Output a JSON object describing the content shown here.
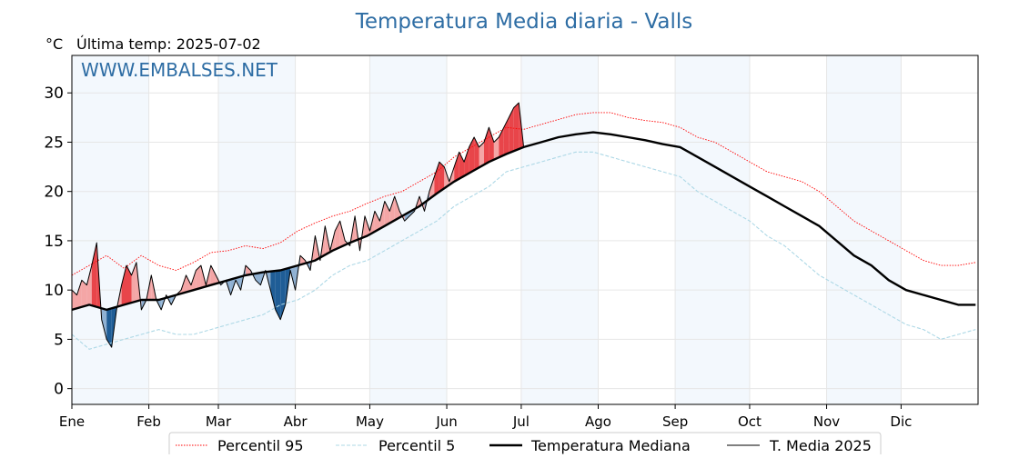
{
  "chart_data": {
    "type": "line",
    "title": "Temperatura Media diaria - Valls",
    "unit_label": "°C",
    "last_temp_label": "Última temp: 2025-07-02",
    "watermark": "WWW.EMBALSES.NET",
    "xlabel": "",
    "ylabel": "",
    "x_unit": "day of year",
    "xlim": [
      1,
      366
    ],
    "ylim": [
      -1.6,
      33.8
    ],
    "yticks": [
      0,
      5,
      10,
      15,
      20,
      25,
      30
    ],
    "months": [
      {
        "label": "Ene",
        "start": 1
      },
      {
        "label": "Feb",
        "start": 32
      },
      {
        "label": "Mar",
        "start": 60
      },
      {
        "label": "Abr",
        "start": 91
      },
      {
        "label": "May",
        "start": 121
      },
      {
        "label": "Jun",
        "start": 152
      },
      {
        "label": "Jul",
        "start": 182
      },
      {
        "label": "Ago",
        "start": 213
      },
      {
        "label": "Sep",
        "start": 244
      },
      {
        "label": "Oct",
        "start": 274
      },
      {
        "label": "Nov",
        "start": 305
      },
      {
        "label": "Dic",
        "start": 335
      }
    ],
    "shaded_month_bands": true,
    "grid": true,
    "legend_position": "bottom",
    "colors": {
      "p95": "#ff0000",
      "p5": "#add8e6",
      "median": "#000000",
      "current": "#000000",
      "above_fill": "#f4a6a6",
      "above_fill_strong": "#e8454a",
      "below_fill": "#8fb1d3",
      "below_fill_strong": "#1f5d96",
      "title": "#2e6da4",
      "band": "#f3f8fd"
    },
    "series": [
      {
        "name": "Percentil 95",
        "style": "dotted",
        "x": [
          1,
          8,
          15,
          22,
          29,
          36,
          43,
          50,
          57,
          64,
          71,
          78,
          85,
          92,
          99,
          106,
          113,
          120,
          127,
          134,
          141,
          148,
          155,
          162,
          169,
          176,
          183,
          190,
          197,
          204,
          211,
          218,
          225,
          232,
          239,
          246,
          253,
          260,
          267,
          274,
          281,
          288,
          295,
          302,
          309,
          316,
          323,
          330,
          337,
          344,
          351,
          358,
          365
        ],
        "values": [
          11.5,
          12.5,
          13.5,
          12.2,
          13.5,
          12.5,
          12.0,
          12.8,
          13.8,
          14.0,
          14.5,
          14.2,
          14.8,
          16.0,
          16.8,
          17.5,
          18.0,
          18.8,
          19.5,
          20.0,
          21.0,
          22.0,
          23.5,
          24.5,
          25.5,
          26.5,
          26.3,
          26.8,
          27.3,
          27.8,
          28.0,
          28.0,
          27.5,
          27.2,
          27.0,
          26.5,
          25.5,
          25.0,
          24.0,
          23.0,
          22.0,
          21.5,
          21.0,
          20.0,
          18.5,
          17.0,
          16.0,
          15.0,
          14.0,
          13.0,
          12.5,
          12.5,
          12.8
        ]
      },
      {
        "name": "Percentil 5",
        "style": "dashed",
        "x": [
          1,
          8,
          15,
          22,
          29,
          36,
          43,
          50,
          57,
          64,
          71,
          78,
          85,
          92,
          99,
          106,
          113,
          120,
          127,
          134,
          141,
          148,
          155,
          162,
          169,
          176,
          183,
          190,
          197,
          204,
          211,
          218,
          225,
          232,
          239,
          246,
          253,
          260,
          267,
          274,
          281,
          288,
          295,
          302,
          309,
          316,
          323,
          330,
          337,
          344,
          351,
          358,
          365
        ],
        "values": [
          5.5,
          4.0,
          4.5,
          5.0,
          5.5,
          6.0,
          5.5,
          5.5,
          6.0,
          6.5,
          7.0,
          7.5,
          8.5,
          9.0,
          10.0,
          11.5,
          12.5,
          13.0,
          14.0,
          15.0,
          16.0,
          17.0,
          18.5,
          19.5,
          20.5,
          22.0,
          22.5,
          23.0,
          23.5,
          24.0,
          24.0,
          23.5,
          23.0,
          22.5,
          22.0,
          21.5,
          20.0,
          19.0,
          18.0,
          17.0,
          15.5,
          14.5,
          13.0,
          11.5,
          10.5,
          9.5,
          8.5,
          7.5,
          6.5,
          6.0,
          5.0,
          5.5,
          6.0
        ]
      },
      {
        "name": "Temperatura Mediana",
        "style": "solid-thick",
        "x": [
          1,
          8,
          15,
          22,
          29,
          36,
          43,
          50,
          57,
          64,
          71,
          78,
          85,
          92,
          99,
          106,
          113,
          120,
          127,
          134,
          141,
          148,
          155,
          162,
          169,
          176,
          183,
          190,
          197,
          204,
          211,
          218,
          225,
          232,
          239,
          246,
          253,
          260,
          267,
          274,
          281,
          288,
          295,
          302,
          309,
          316,
          323,
          330,
          337,
          344,
          351,
          358,
          365
        ],
        "values": [
          8.0,
          8.5,
          8.0,
          8.5,
          9.0,
          9.0,
          9.5,
          10.0,
          10.5,
          11.0,
          11.5,
          11.8,
          12.0,
          12.5,
          13.0,
          14.0,
          14.8,
          15.5,
          16.5,
          17.5,
          18.5,
          19.8,
          21.0,
          22.0,
          23.0,
          23.8,
          24.5,
          25.0,
          25.5,
          25.8,
          26.0,
          25.8,
          25.5,
          25.2,
          24.8,
          24.5,
          23.5,
          22.5,
          21.5,
          20.5,
          19.5,
          18.5,
          17.5,
          16.5,
          15.0,
          13.5,
          12.5,
          11.0,
          10.0,
          9.5,
          9.0,
          8.5,
          8.5
        ]
      },
      {
        "name": "T. Media 2025",
        "style": "solid-thin",
        "x": [
          1,
          3,
          5,
          7,
          9,
          11,
          13,
          15,
          17,
          19,
          21,
          23,
          25,
          27,
          29,
          31,
          33,
          35,
          37,
          39,
          41,
          43,
          45,
          47,
          49,
          51,
          53,
          55,
          57,
          59,
          61,
          63,
          65,
          67,
          69,
          71,
          73,
          75,
          77,
          79,
          81,
          83,
          85,
          87,
          89,
          91,
          93,
          95,
          97,
          99,
          101,
          103,
          105,
          107,
          109,
          111,
          113,
          115,
          117,
          119,
          121,
          123,
          125,
          127,
          129,
          131,
          133,
          135,
          137,
          139,
          141,
          143,
          145,
          147,
          149,
          151,
          153,
          155,
          157,
          159,
          161,
          163,
          165,
          167,
          169,
          171,
          173,
          175,
          177,
          179,
          181,
          183
        ],
        "values": [
          10.0,
          9.5,
          11.0,
          10.5,
          12.5,
          14.8,
          7.0,
          5.0,
          4.2,
          8.0,
          10.5,
          12.5,
          11.5,
          12.8,
          8.0,
          9.0,
          11.5,
          9.0,
          8.0,
          9.5,
          8.5,
          9.5,
          10.0,
          11.5,
          10.5,
          12.0,
          12.5,
          10.5,
          12.5,
          11.5,
          10.5,
          11.0,
          9.5,
          11.0,
          10.0,
          12.5,
          12.0,
          11.0,
          10.5,
          12.0,
          10.0,
          8.0,
          7.0,
          8.5,
          12.0,
          10.0,
          13.5,
          13.0,
          12.0,
          15.5,
          13.0,
          16.5,
          14.0,
          16.0,
          17.0,
          15.0,
          14.5,
          17.5,
          14.0,
          17.5,
          16.0,
          18.0,
          17.0,
          19.0,
          18.0,
          19.5,
          18.0,
          17.0,
          17.5,
          18.0,
          19.5,
          18.0,
          20.0,
          21.5,
          23.0,
          22.5,
          21.0,
          22.5,
          24.0,
          23.0,
          24.5,
          25.5,
          24.5,
          25.0,
          26.5,
          25.0,
          25.5,
          26.5,
          27.5,
          28.5,
          29.0,
          24.5
        ]
      }
    ]
  }
}
